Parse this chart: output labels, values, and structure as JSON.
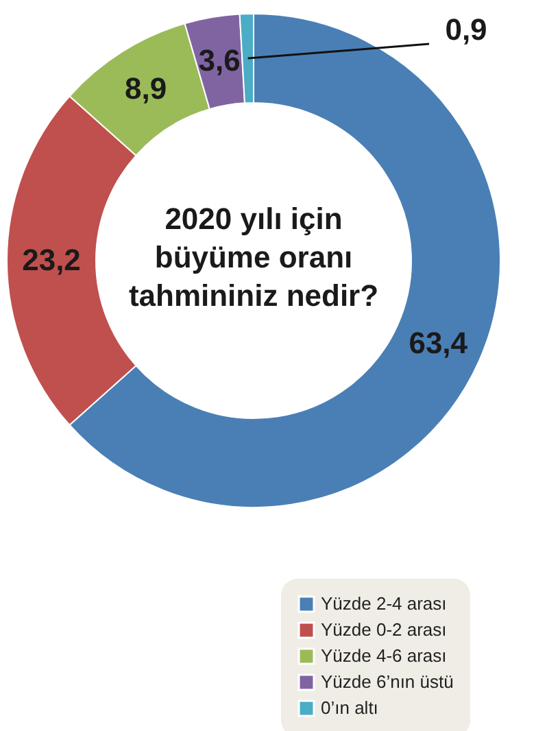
{
  "chart_data": {
    "type": "donut",
    "title": "2020 yılı için\nbüyüme oranı\ntahmininiz nedir?",
    "categories": [
      "Yüzde 2-4 arası",
      "Yüzde 0-2 arası",
      "Yüzde 4-6 arası",
      "Yüzde 6’nın üstü",
      "0’ın altı"
    ],
    "values": [
      63.4,
      23.2,
      8.9,
      3.6,
      0.9
    ],
    "colors": [
      "#4a7fb5",
      "#c0504d",
      "#9bbb59",
      "#8064a2",
      "#4bacc6"
    ],
    "value_labels": [
      "63,4",
      "23,2",
      "8,9",
      "3,6",
      "0,9"
    ],
    "legend": "bottom right"
  }
}
